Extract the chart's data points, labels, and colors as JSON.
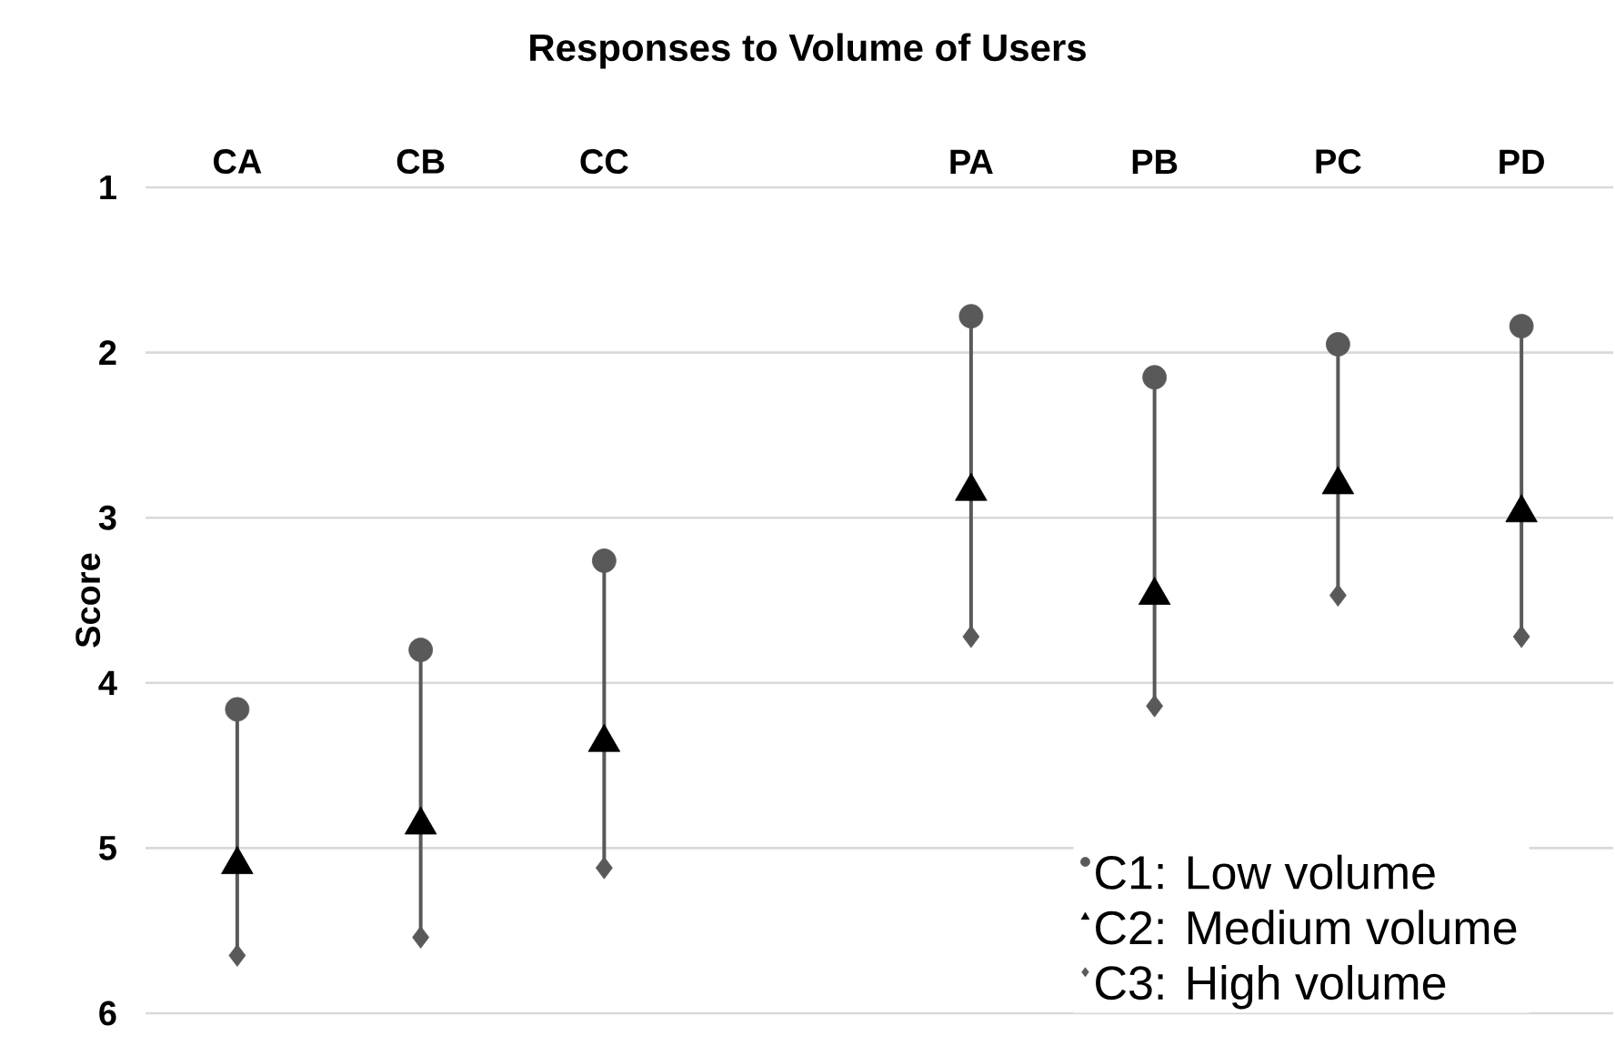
{
  "chart_data": {
    "type": "scatter",
    "title": "Responses to Volume of Users",
    "ylabel": "Score",
    "categories": [
      "CA",
      "CB",
      "CC",
      null,
      "PA",
      "PB",
      "PC",
      "PD"
    ],
    "ylim": [
      6,
      1
    ],
    "yticks": [
      1,
      2,
      3,
      4,
      5,
      6
    ],
    "grid": "y",
    "legend": "bottom right",
    "series": [
      {
        "name": "C1: Low volume",
        "color": "#595959",
        "marker": "circle",
        "values": [
          4.16,
          3.8,
          3.26,
          null,
          1.78,
          2.15,
          1.95,
          1.84
        ]
      },
      {
        "name": "C2: Medium volume",
        "color": "#000000",
        "marker": "triangle",
        "values": [
          5.1,
          4.86,
          4.36,
          null,
          2.84,
          3.47,
          2.8,
          2.97
        ]
      },
      {
        "name": "C3: High volume",
        "color": "#595959",
        "marker": "diamond",
        "values": [
          5.65,
          5.54,
          5.12,
          null,
          3.72,
          4.14,
          3.47,
          3.72
        ]
      }
    ]
  }
}
